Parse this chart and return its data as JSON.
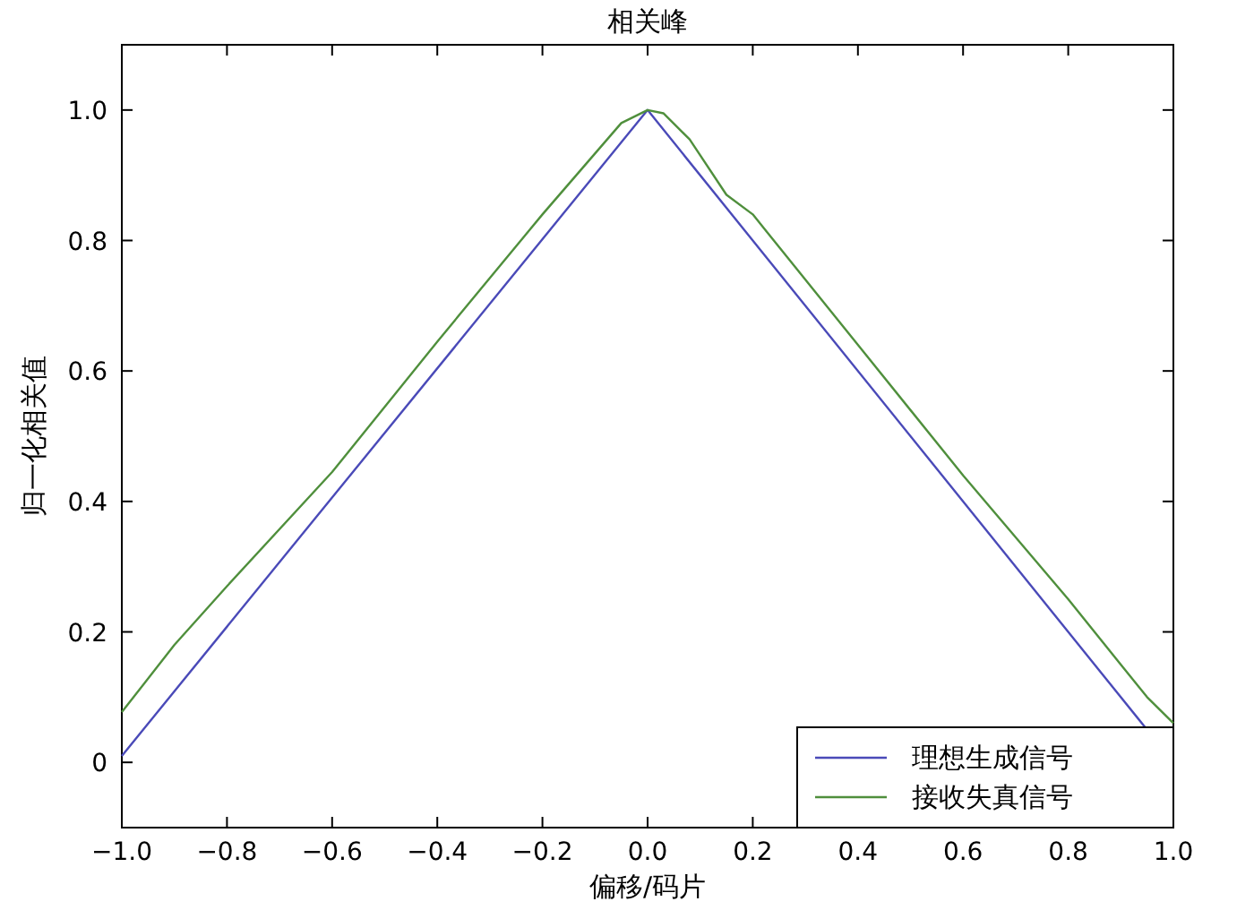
{
  "chart_data": {
    "type": "line",
    "title": "相关峰",
    "xlabel": "偏移/码片",
    "ylabel": "归一化相关值",
    "xlim": [
      -1,
      1
    ],
    "ylim": [
      -0.1,
      1.1
    ],
    "xticks": [
      {
        "value": -1,
        "label": "−1.0"
      },
      {
        "value": -0.8,
        "label": "−0.8"
      },
      {
        "value": -0.6,
        "label": "−0.6"
      },
      {
        "value": -0.4,
        "label": "−0.4"
      },
      {
        "value": -0.2,
        "label": "−0.2"
      },
      {
        "value": 0,
        "label": "0.0"
      },
      0.2,
      0.4,
      0.6,
      0.8,
      {
        "value": 1,
        "label": "1.0"
      }
    ],
    "yticks": [
      0,
      0.2,
      0.4,
      0.6,
      0.8,
      {
        "value": 1,
        "label": "1.0"
      }
    ],
    "legend": "bottom right",
    "series": [
      {
        "name": "理想生成信号",
        "color": "#4a4ab8",
        "x": [
          -1,
          0,
          0.95
        ],
        "values": [
          0.01,
          1,
          0.05
        ]
      },
      {
        "name": "接收失真信号",
        "color": "#4f8f3c",
        "x": [
          -1,
          -0.9,
          -0.8,
          -0.6,
          -0.4,
          -0.2,
          -0.05,
          0,
          0.03,
          0.08,
          0.15,
          0.2,
          0.25,
          0.4,
          0.6,
          0.8,
          0.9,
          0.95,
          1
        ],
        "values": [
          0.077,
          0.18,
          0.27,
          0.445,
          0.645,
          0.84,
          0.98,
          1,
          0.995,
          0.955,
          0.87,
          0.84,
          0.79,
          0.64,
          0.44,
          0.25,
          0.15,
          0.1,
          0.06
        ]
      }
    ]
  }
}
